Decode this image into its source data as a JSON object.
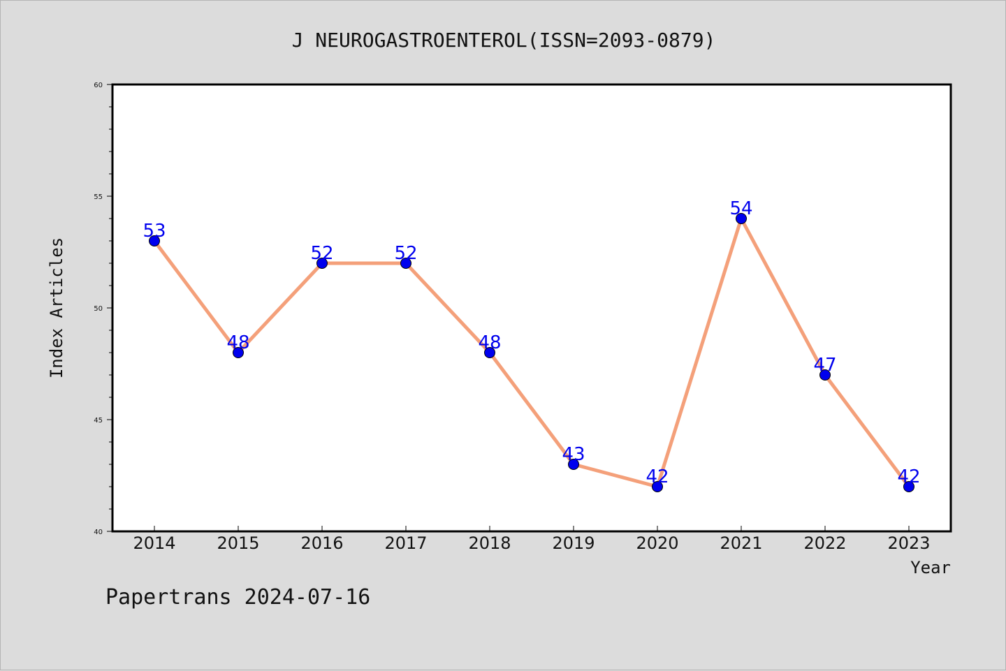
{
  "header": {
    "title": "J NEUROGASTROENTEROL(ISSN=2093-0879)"
  },
  "footer": {
    "watermark": "Papertrans 2024-07-16"
  },
  "chart_data": {
    "type": "line",
    "title": "J NEUROGASTROENTEROL(ISSN=2093-0879)",
    "xlabel": "Year",
    "ylabel": "Index Articles",
    "categories": [
      "2014",
      "2015",
      "2016",
      "2017",
      "2018",
      "2019",
      "2020",
      "2021",
      "2022",
      "2023"
    ],
    "values": [
      53,
      48,
      52,
      52,
      48,
      43,
      42,
      54,
      47,
      42
    ],
    "ylim": [
      40,
      60
    ],
    "yticks": [
      "40",
      "45",
      "50",
      "55",
      "60"
    ],
    "grid": false,
    "line_color": "#f4a07a",
    "marker_color": "#0000ee",
    "label_color": "#0000ee"
  }
}
